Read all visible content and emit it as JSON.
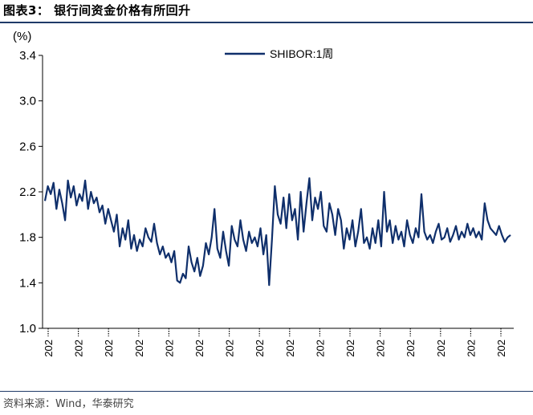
{
  "header": {
    "title": "图表3： 银行间资金价格有所回升"
  },
  "footer": {
    "source": "资料来源：Wind，华泰研究"
  },
  "colors": {
    "series": "#0f2f6b",
    "rule": "#1f3a68",
    "axis": "#000000"
  },
  "chart_data": {
    "type": "line",
    "unit_label": "(%)",
    "ylim": [
      1.0,
      3.4
    ],
    "yticks": [
      "1.0",
      "1.4",
      "1.8",
      "2.2",
      "2.6",
      "3.0",
      "3.4"
    ],
    "xtick_labels": [
      "202",
      "202",
      "202",
      "202",
      "202",
      "202",
      "202",
      "202",
      "202",
      "202",
      "202",
      "202",
      "202",
      "202",
      "202",
      "202"
    ],
    "legend": {
      "position": "top-right"
    },
    "series": [
      {
        "name": "SHIBOR:1周",
        "values": [
          2.12,
          2.25,
          2.18,
          2.28,
          2.05,
          2.22,
          2.1,
          1.95,
          2.3,
          2.15,
          2.25,
          2.08,
          2.18,
          2.12,
          2.3,
          2.05,
          2.2,
          2.1,
          2.15,
          2.02,
          2.08,
          1.92,
          2.05,
          1.95,
          1.85,
          2.0,
          1.72,
          1.88,
          1.78,
          1.95,
          1.7,
          1.82,
          1.68,
          1.78,
          1.72,
          1.88,
          1.8,
          1.76,
          1.92,
          1.75,
          1.65,
          1.72,
          1.62,
          1.66,
          1.58,
          1.68,
          1.42,
          1.4,
          1.48,
          1.44,
          1.72,
          1.58,
          1.5,
          1.62,
          1.46,
          1.55,
          1.75,
          1.65,
          1.8,
          2.05,
          1.7,
          1.62,
          1.85,
          1.68,
          1.55,
          1.9,
          1.78,
          1.72,
          1.95,
          1.78,
          1.68,
          1.85,
          1.75,
          1.8,
          1.72,
          1.88,
          1.65,
          1.82,
          1.38,
          1.78,
          2.25,
          2.0,
          1.92,
          2.15,
          1.88,
          2.18,
          1.95,
          2.05,
          1.78,
          2.2,
          1.85,
          2.1,
          2.32,
          1.95,
          2.15,
          2.05,
          2.2,
          1.9,
          1.85,
          2.1,
          2.0,
          1.82,
          2.05,
          1.95,
          1.7,
          1.88,
          1.78,
          1.95,
          1.72,
          1.85,
          2.05,
          1.75,
          1.8,
          1.7,
          1.88,
          1.75,
          1.95,
          1.72,
          2.2,
          1.85,
          1.95,
          1.75,
          1.9,
          1.78,
          1.85,
          1.72,
          1.95,
          1.82,
          1.75,
          1.88,
          1.8,
          2.18,
          1.85,
          1.78,
          1.82,
          1.75,
          1.85,
          1.92,
          1.78,
          1.8,
          1.88,
          1.76,
          1.82,
          1.9,
          1.78,
          1.85,
          1.8,
          1.92,
          1.82,
          1.88,
          1.8,
          1.85,
          1.78,
          2.1,
          1.95,
          1.88,
          1.85,
          1.82,
          1.9,
          1.82,
          1.76,
          1.8,
          1.82
        ]
      }
    ]
  }
}
